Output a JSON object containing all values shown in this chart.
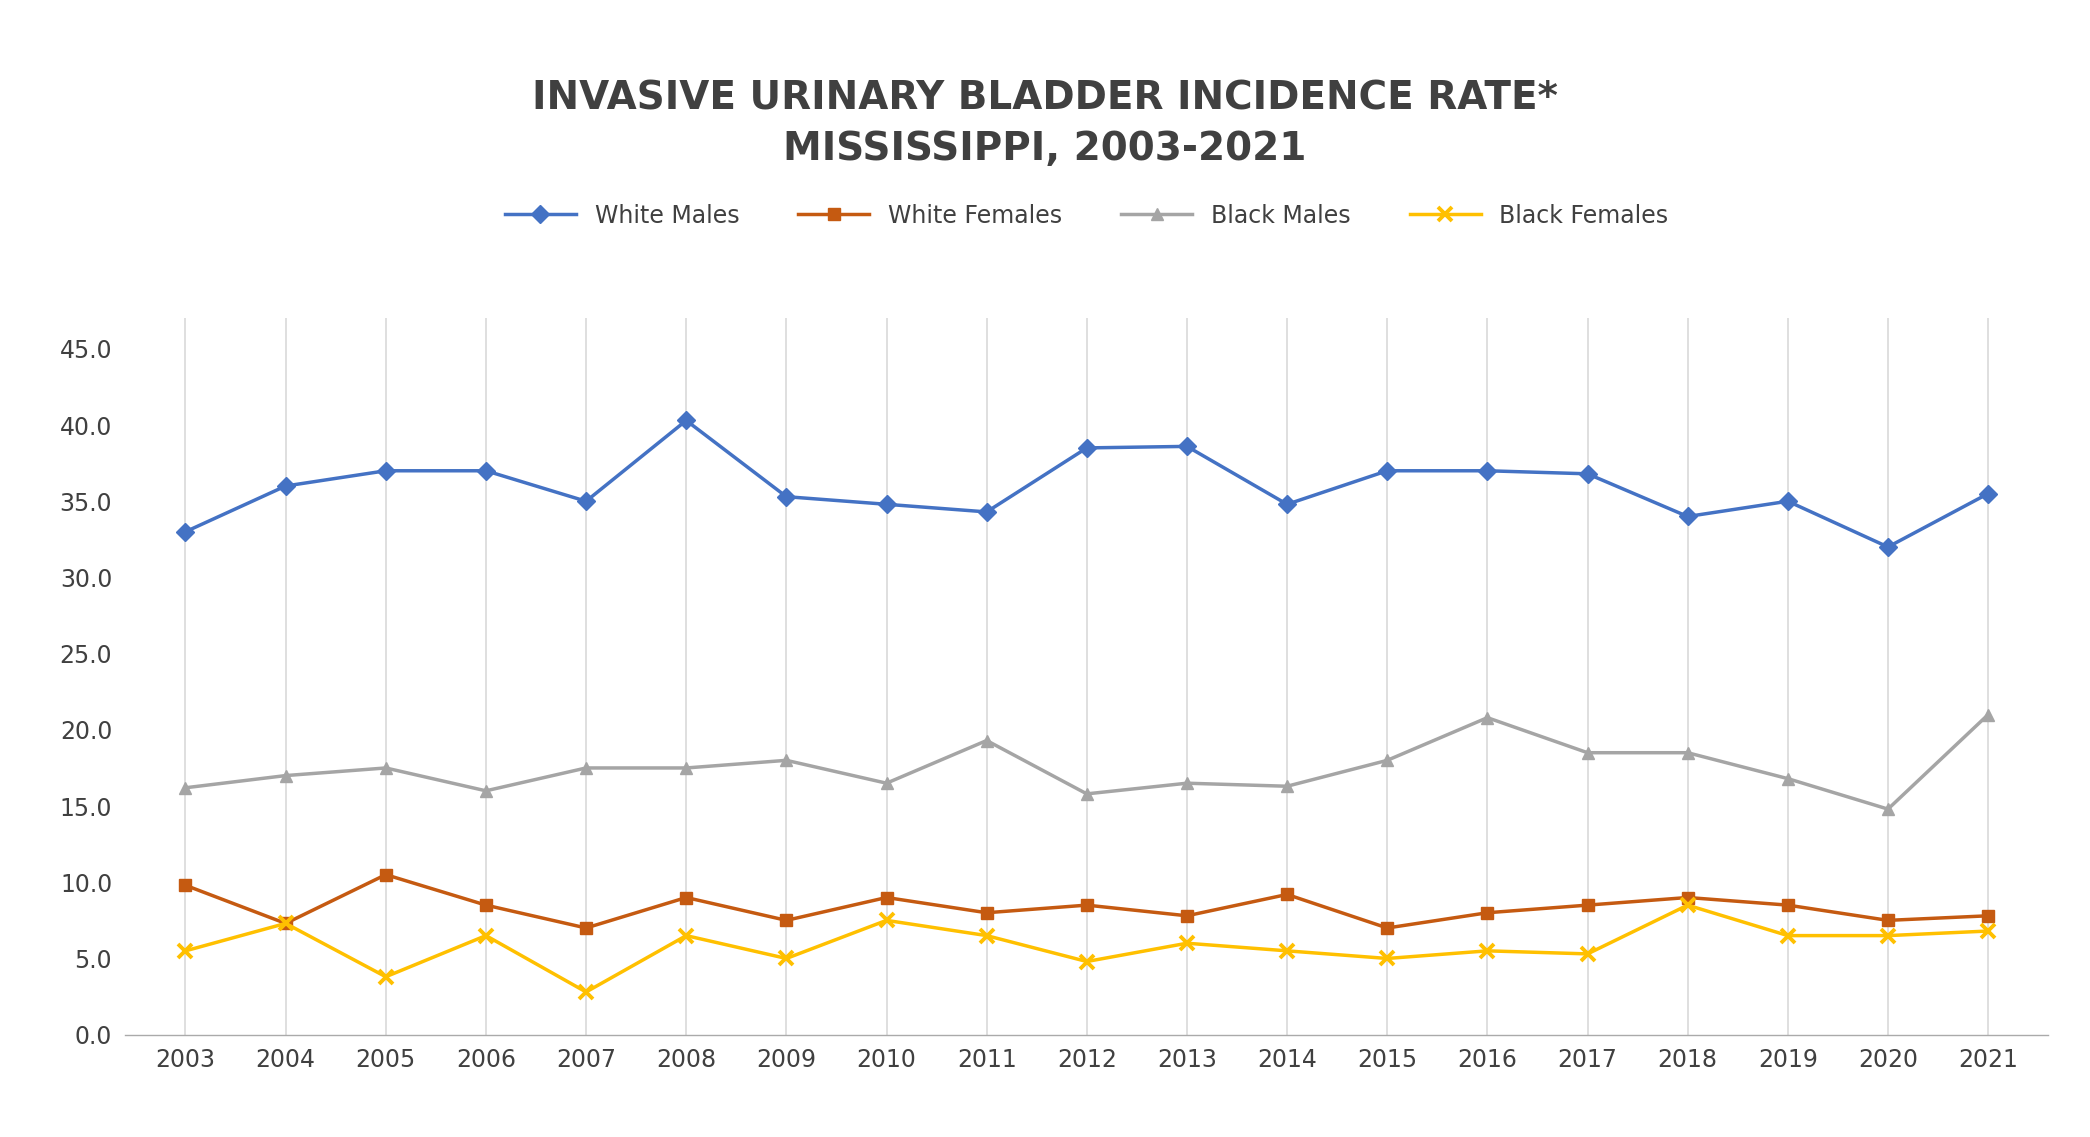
{
  "title": "INVASIVE URINARY BLADDER INCIDENCE RATE*\nMISSISSIPPI, 2003-2021",
  "years": [
    2003,
    2004,
    2005,
    2006,
    2007,
    2008,
    2009,
    2010,
    2011,
    2012,
    2013,
    2014,
    2015,
    2016,
    2017,
    2018,
    2019,
    2020,
    2021
  ],
  "white_males": [
    33.0,
    36.0,
    37.0,
    37.0,
    35.0,
    40.3,
    35.3,
    34.8,
    34.3,
    38.5,
    38.6,
    34.8,
    37.0,
    37.0,
    36.8,
    34.0,
    35.0,
    32.0,
    35.5
  ],
  "white_females": [
    9.8,
    7.3,
    10.5,
    8.5,
    7.0,
    9.0,
    7.5,
    9.0,
    8.0,
    8.5,
    7.8,
    9.2,
    7.0,
    8.0,
    8.5,
    9.0,
    8.5,
    7.5,
    7.8
  ],
  "black_males": [
    16.2,
    17.0,
    17.5,
    16.0,
    17.5,
    17.5,
    18.0,
    16.5,
    19.3,
    15.8,
    16.5,
    16.3,
    18.0,
    20.8,
    18.5,
    18.5,
    16.8,
    14.8,
    21.0
  ],
  "black_females": [
    5.5,
    7.3,
    3.8,
    6.5,
    2.8,
    6.5,
    5.0,
    7.5,
    6.5,
    4.8,
    6.0,
    5.5,
    5.0,
    5.5,
    5.3,
    8.5,
    6.5,
    6.5,
    6.8
  ],
  "white_males_color": "#4472C4",
  "white_females_color": "#C55A11",
  "black_males_color": "#A5A5A5",
  "black_females_color": "#FFC000",
  "background_color": "#FFFFFF",
  "plot_bg_color": "#FFFFFF",
  "grid_color": "#D9D9D9",
  "ylim": [
    0,
    47
  ],
  "yticks": [
    0.0,
    5.0,
    10.0,
    15.0,
    20.0,
    25.0,
    30.0,
    35.0,
    40.0,
    45.0
  ],
  "title_fontsize": 28,
  "tick_fontsize": 17,
  "legend_fontsize": 17
}
